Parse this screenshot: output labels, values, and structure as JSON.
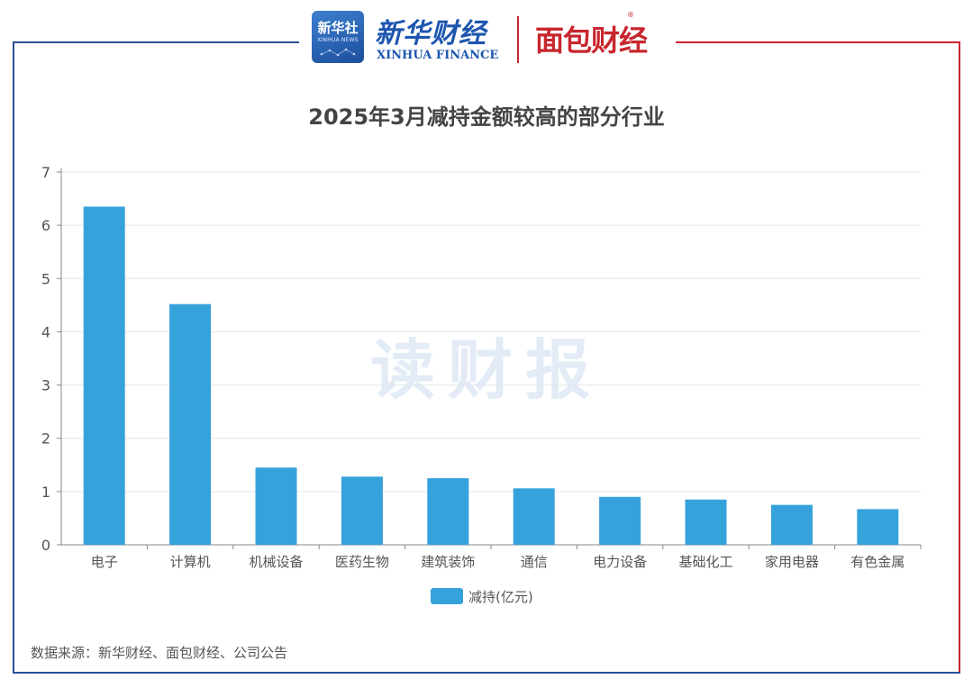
{
  "header": {
    "xinhua_logo_cn": "新华社",
    "xinhua_logo_en": "XINHUA NEWS",
    "xinhua_finance_cn": "新华财经",
    "xinhua_finance_en": "XINHUA FINANCE",
    "mianbao_cn": "面包财经",
    "registered_mark": "®"
  },
  "watermark": "读财报",
  "source": "数据来源：新华财经、面包财经、公司公告",
  "colors": {
    "bar": "#36a2dc",
    "frame_blue": "#2b4f95",
    "frame_red": "#c8262e"
  },
  "chart_data": {
    "type": "bar",
    "title": "2025年3月减持金额较高的部分行业",
    "categories": [
      "电子",
      "计算机",
      "机械设备",
      "医药生物",
      "建筑装饰",
      "通信",
      "电力设备",
      "基础化工",
      "家用电器",
      "有色金属"
    ],
    "series": [
      {
        "name": "减持(亿元)",
        "values": [
          6.35,
          4.52,
          1.45,
          1.28,
          1.25,
          1.06,
          0.9,
          0.85,
          0.75,
          0.67
        ]
      }
    ],
    "ylim": [
      0,
      7
    ],
    "yticks": [
      "0",
      "1",
      "2",
      "3",
      "4",
      "5",
      "6",
      "7"
    ],
    "grid": true,
    "legend": "bottom-center"
  }
}
